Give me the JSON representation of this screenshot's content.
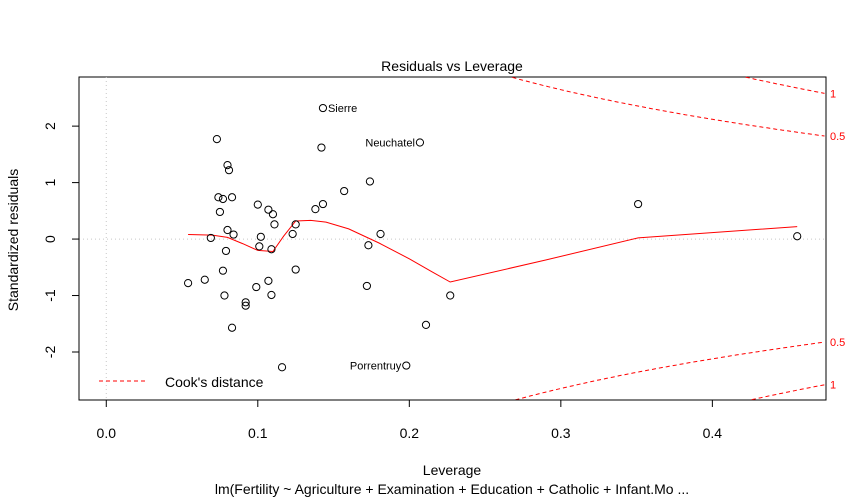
{
  "chart_data": {
    "type": "scatter",
    "title": "Residuals vs Leverage",
    "xlabel": "Leverage",
    "ylabel": "Standardized residuals",
    "subtitle": "lm(Fertility ~ Agriculture + Examination + Education + Catholic + Infant.Mo ...",
    "xlim": [
      -0.018,
      0.475
    ],
    "ylim": [
      -2.85,
      2.87
    ],
    "x_ticks": [
      {
        "value": 0.0,
        "label": "0.0"
      },
      {
        "value": 0.1,
        "label": "0.1"
      },
      {
        "value": 0.2,
        "label": "0.2"
      },
      {
        "value": 0.3,
        "label": "0.3"
      },
      {
        "value": 0.4,
        "label": "0.4"
      }
    ],
    "y_ticks": [
      {
        "value": -2,
        "label": "-2"
      },
      {
        "value": -1,
        "label": "-1"
      },
      {
        "value": 0,
        "label": "0"
      },
      {
        "value": 1,
        "label": "1"
      },
      {
        "value": 2,
        "label": "2"
      }
    ],
    "grid": false,
    "reference_lines": {
      "x": 0,
      "y": 0,
      "style": "dotted",
      "color": "#c8c8c8"
    },
    "points": [
      {
        "x": 0.054,
        "y": -0.78
      },
      {
        "x": 0.065,
        "y": -0.72
      },
      {
        "x": 0.069,
        "y": 0.02
      },
      {
        "x": 0.073,
        "y": 1.77
      },
      {
        "x": 0.074,
        "y": 0.74
      },
      {
        "x": 0.075,
        "y": 0.48
      },
      {
        "x": 0.077,
        "y": 0.71
      },
      {
        "x": 0.077,
        "y": -0.56
      },
      {
        "x": 0.078,
        "y": -1.0
      },
      {
        "x": 0.079,
        "y": -0.21
      },
      {
        "x": 0.08,
        "y": 1.31
      },
      {
        "x": 0.08,
        "y": 0.16
      },
      {
        "x": 0.081,
        "y": 1.22
      },
      {
        "x": 0.083,
        "y": 0.74
      },
      {
        "x": 0.083,
        "y": -1.57
      },
      {
        "x": 0.084,
        "y": 0.08
      },
      {
        "x": 0.092,
        "y": -1.18
      },
      {
        "x": 0.092,
        "y": -1.12
      },
      {
        "x": 0.099,
        "y": -0.85
      },
      {
        "x": 0.1,
        "y": 0.61
      },
      {
        "x": 0.101,
        "y": -0.13
      },
      {
        "x": 0.102,
        "y": 0.04
      },
      {
        "x": 0.107,
        "y": 0.52
      },
      {
        "x": 0.107,
        "y": -0.74
      },
      {
        "x": 0.109,
        "y": -0.18
      },
      {
        "x": 0.109,
        "y": -0.99
      },
      {
        "x": 0.11,
        "y": 0.44
      },
      {
        "x": 0.111,
        "y": 0.26
      },
      {
        "x": 0.116,
        "y": -2.27
      },
      {
        "x": 0.123,
        "y": 0.09
      },
      {
        "x": 0.125,
        "y": 0.26
      },
      {
        "x": 0.125,
        "y": -0.54
      },
      {
        "x": 0.138,
        "y": 0.53
      },
      {
        "x": 0.142,
        "y": 1.62
      },
      {
        "x": 0.143,
        "y": 2.32,
        "label": "Sierre"
      },
      {
        "x": 0.143,
        "y": 0.62
      },
      {
        "x": 0.157,
        "y": 0.85
      },
      {
        "x": 0.172,
        "y": -0.83
      },
      {
        "x": 0.173,
        "y": -0.11
      },
      {
        "x": 0.174,
        "y": 1.02
      },
      {
        "x": 0.181,
        "y": 0.09
      },
      {
        "x": 0.198,
        "y": -2.24,
        "label": "Porrentruy"
      },
      {
        "x": 0.207,
        "y": 1.71,
        "label": "Neuchatel"
      },
      {
        "x": 0.211,
        "y": -1.52
      },
      {
        "x": 0.227,
        "y": -1.0
      },
      {
        "x": 0.351,
        "y": 0.62
      },
      {
        "x": 0.456,
        "y": 0.05
      }
    ],
    "smooth_line": {
      "color": "#ff0000",
      "points": [
        [
          0.054,
          0.08
        ],
        [
          0.07,
          0.07
        ],
        [
          0.08,
          0.03
        ],
        [
          0.09,
          -0.08
        ],
        [
          0.1,
          -0.2
        ],
        [
          0.11,
          -0.22
        ],
        [
          0.117,
          0.05
        ],
        [
          0.125,
          0.32
        ],
        [
          0.135,
          0.33
        ],
        [
          0.145,
          0.3
        ],
        [
          0.16,
          0.18
        ],
        [
          0.18,
          -0.07
        ],
        [
          0.2,
          -0.35
        ],
        [
          0.215,
          -0.58
        ],
        [
          0.227,
          -0.76
        ],
        [
          0.29,
          -0.37
        ],
        [
          0.351,
          0.02
        ],
        [
          0.456,
          0.22
        ]
      ]
    },
    "cooks_contours": {
      "color": "#ff0000",
      "levels": [
        {
          "label": "0.5",
          "value": 0.5
        },
        {
          "label": "1",
          "value": 1
        }
      ],
      "p": 6
    },
    "legend": {
      "position": "bottom-left",
      "entries": [
        {
          "label": "Cook's distance",
          "style": "dashed",
          "color": "#ff0000"
        }
      ]
    },
    "colors": {
      "points": "#000000",
      "smooth": "#ff0000",
      "cooks": "#ff0000",
      "axis": "#000000",
      "reference": "#c8c8c8"
    }
  }
}
